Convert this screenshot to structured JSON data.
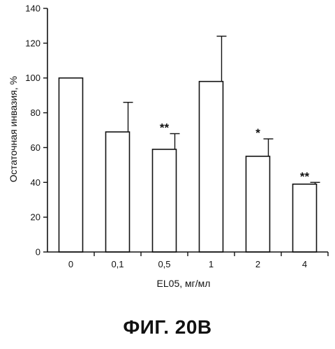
{
  "chart_data": {
    "type": "bar",
    "categories": [
      "0",
      "0,1",
      "0,5",
      "1",
      "2",
      "4"
    ],
    "values": [
      100,
      69,
      59,
      98,
      55,
      39
    ],
    "errors": [
      0,
      17,
      9,
      26,
      10,
      1
    ],
    "significance": [
      "",
      "",
      "**",
      "",
      "*",
      "**"
    ],
    "ylim": [
      0,
      140
    ],
    "yticks": [
      "0",
      "20",
      "40",
      "60",
      "80",
      "100",
      "120",
      "140"
    ],
    "ytick_values": [
      0,
      20,
      40,
      60,
      80,
      100,
      120,
      140
    ],
    "ylabel": "Остаточная инвазия, %",
    "xlabel": "EL05, мг/мл",
    "bar_fill": "#ffffff",
    "stroke_color": "#111111"
  },
  "caption": "ФИГ. 20В"
}
